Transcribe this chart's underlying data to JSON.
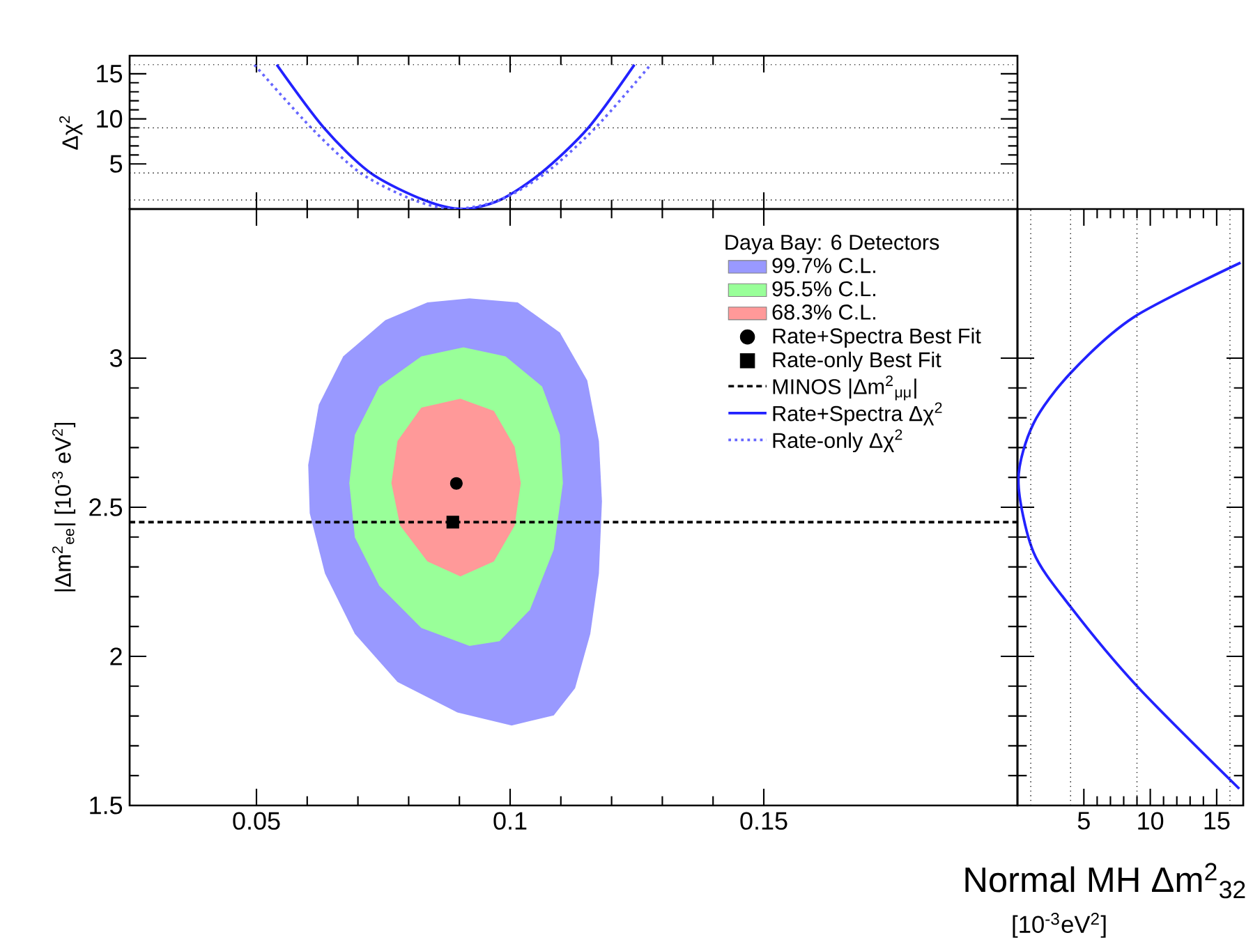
{
  "chart_data": [
    {
      "type": "area",
      "ylabel": "|Δm$^{2}$$_{ee}$| [10$^{-3}$ eV$^{2}$]",
      "legend_title": "Daya Bay: 6 Detectors",
      "legend": "top right",
      "xlim": [
        0.025,
        0.2
      ],
      "ylim": [
        1.5,
        3.5
      ],
      "xticks": [
        0.05,
        0.1,
        0.15
      ],
      "yticks": [
        1.5,
        2,
        2.5,
        3
      ],
      "ref_lines": [
        {
          "axis": "y",
          "value": 2.45,
          "label": "MINOS |Δm$^{2}$$_{μμ}$|",
          "color": "#000000",
          "line_style": "dashed"
        }
      ],
      "series": [
        {
          "type": "area",
          "name": "99.7% C.L.",
          "color": "#9999ff",
          "x": [
            0.092,
            0.1015,
            0.1098,
            0.1152,
            0.1175,
            0.1181,
            0.1175,
            0.1158,
            0.1128,
            0.1086,
            0.1003,
            0.0896,
            0.0778,
            0.0694,
            0.0635,
            0.0605,
            0.0602,
            0.0623,
            0.0671,
            0.0754,
            0.0837
          ],
          "values": [
            3.2,
            3.187,
            3.086,
            2.925,
            2.722,
            2.52,
            2.278,
            2.075,
            1.893,
            1.802,
            1.768,
            1.812,
            1.914,
            2.075,
            2.278,
            2.48,
            2.642,
            2.844,
            3.006,
            3.127,
            3.187
          ]
        },
        {
          "type": "area",
          "name": "95.5% C.L.",
          "color": "#99ff99",
          "x": [
            0.0908,
            0.0991,
            0.1063,
            0.1098,
            0.1104,
            0.1086,
            0.1039,
            0.0979,
            0.092,
            0.0825,
            0.0742,
            0.0694,
            0.0683,
            0.0694,
            0.0742,
            0.0825
          ],
          "values": [
            3.036,
            3.006,
            2.905,
            2.743,
            2.581,
            2.358,
            2.156,
            2.051,
            2.035,
            2.095,
            2.237,
            2.399,
            2.581,
            2.743,
            2.905,
            3.006
          ]
        },
        {
          "type": "area",
          "name": "68.3% C.L.",
          "color": "#ff9999",
          "x": [
            0.0902,
            0.0968,
            0.1009,
            0.1021,
            0.1009,
            0.0968,
            0.0902,
            0.0837,
            0.0783,
            0.0766,
            0.0778,
            0.0825
          ],
          "values": [
            2.864,
            2.823,
            2.702,
            2.581,
            2.439,
            2.318,
            2.268,
            2.318,
            2.439,
            2.581,
            2.722,
            2.834
          ]
        },
        {
          "type": "scatter",
          "name": "Rate+Spectra Best Fit",
          "color": "#000000",
          "marker": "circle",
          "x": [
            0.0894
          ],
          "values": [
            2.58
          ]
        },
        {
          "type": "scatter",
          "name": "Rate-only Best Fit",
          "color": "#000000",
          "marker": "square",
          "x": [
            0.0887
          ],
          "values": [
            2.45
          ]
        }
      ]
    },
    {
      "type": "line",
      "ylabel": "Δχ$^{2}$",
      "xlim": [
        0.025,
        0.2
      ],
      "ylim": [
        0,
        17
      ],
      "xticks": [
        0.05,
        0.1,
        0.15
      ],
      "yticks": [
        5,
        10,
        15
      ],
      "tick_labels": "y",
      "ref_lines": [
        {
          "axis": "y",
          "value": 1,
          "color": "#000000",
          "line_style": "dotted"
        },
        {
          "axis": "y",
          "value": 4,
          "color": "#000000",
          "line_style": "dotted"
        },
        {
          "axis": "y",
          "value": 9,
          "color": "#000000",
          "line_style": "dotted"
        },
        {
          "axis": "y",
          "value": 16,
          "color": "#000000",
          "line_style": "dotted"
        }
      ],
      "series": [
        {
          "name": "Rate+Spectra Δχ$^{2}$",
          "color": "#2222ff",
          "line_style": "solid",
          "x": [
            0.054,
            0.0633,
            0.0725,
            0.083,
            0.0906,
            0.098,
            0.1061,
            0.1154,
            0.1245
          ],
          "values": [
            16,
            9,
            4,
            1,
            0,
            1,
            4,
            9,
            16
          ]
        },
        {
          "name": "Rate-only Δχ$^{2}$",
          "color": "#6666ff",
          "line_style": "dotted",
          "x": [
            0.0496,
            0.0608,
            0.0705,
            0.081,
            0.089,
            0.098,
            0.107,
            0.1168,
            0.1277
          ],
          "values": [
            16,
            9,
            4,
            1,
            0,
            1,
            4,
            9,
            16
          ]
        }
      ]
    },
    {
      "type": "line",
      "xlim": [
        0,
        17
      ],
      "ylim": [
        1.5,
        3.5
      ],
      "xticks": [
        5,
        10,
        15
      ],
      "yticks": [
        1.5,
        2,
        2.5,
        3
      ],
      "tick_labels": "x",
      "annotations": [
        "Normal MH Δm$^{2}$$_{32}$",
        "[10$^{-3}$eV$^{2}$]"
      ],
      "ref_lines": [
        {
          "axis": "x",
          "value": 1,
          "color": "#000000",
          "line_style": "dotted"
        },
        {
          "axis": "x",
          "value": 4,
          "color": "#000000",
          "line_style": "dotted"
        },
        {
          "axis": "x",
          "value": 9,
          "color": "#000000",
          "line_style": "dotted"
        },
        {
          "axis": "x",
          "value": 16,
          "color": "#000000",
          "line_style": "dotted"
        }
      ],
      "series": [
        {
          "color": "#2222ff",
          "line_style": "solid",
          "x": [
            16.8,
            8.75,
            4.0,
            1.2,
            0.07,
            1.2,
            4.0,
            9.0,
            16.7
          ],
          "values": [
            3.32,
            3.137,
            2.95,
            2.78,
            2.59,
            2.35,
            2.166,
            1.9,
            1.556
          ]
        }
      ]
    }
  ]
}
